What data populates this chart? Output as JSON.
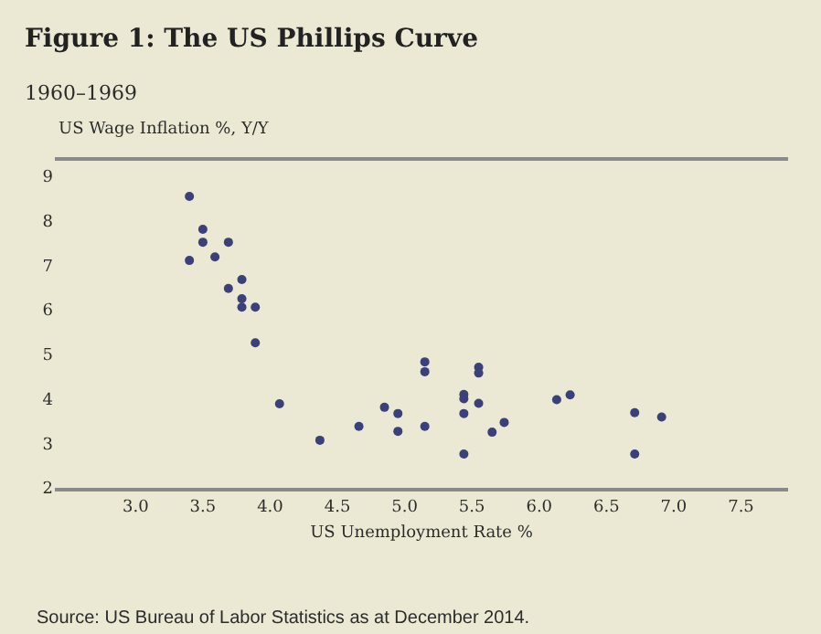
{
  "chart_data": {
    "type": "scatter",
    "title": "Figure 1: The US Phillips Curve",
    "subtitle": "1960–1969",
    "xlabel": "US Unemployment Rate %",
    "ylabel": "US Wage Inflation %, Y/Y",
    "annotations": [
      "Source: US Bureau of Labor Statistics as at December 2014."
    ],
    "series": [
      {
        "color": "#3b3f7a",
        "x": [
          3.4,
          3.4,
          3.5,
          3.5,
          3.59,
          3.69,
          3.69,
          3.79,
          3.79,
          3.79,
          3.89,
          3.89,
          4.07,
          4.37,
          4.66,
          4.85,
          4.95,
          4.95,
          5.15,
          5.15,
          5.15,
          5.44,
          5.44,
          5.44,
          5.44,
          5.55,
          5.55,
          5.55,
          5.65,
          5.74,
          6.13,
          6.23,
          6.71,
          6.71,
          6.91
        ],
        "values": [
          8.55,
          7.11,
          7.81,
          7.52,
          7.19,
          7.52,
          6.48,
          6.68,
          6.25,
          6.06,
          6.06,
          5.26,
          3.89,
          3.07,
          3.38,
          3.81,
          3.67,
          3.27,
          3.38,
          4.83,
          4.61,
          4.1,
          4.0,
          3.67,
          2.76,
          4.71,
          4.58,
          3.9,
          3.25,
          3.47,
          3.98,
          4.09,
          3.69,
          2.76,
          3.59
        ]
      }
    ],
    "xlim": [
      2.4,
      7.85
    ],
    "ylim": [
      2,
      9.35
    ],
    "xticks": [
      {
        "value": 3,
        "label": "3.0"
      },
      3.5,
      {
        "value": 4,
        "label": "4.0"
      },
      4.5,
      {
        "value": 5,
        "label": "5.0"
      },
      5.5,
      {
        "value": 6,
        "label": "6.0"
      },
      6.5,
      {
        "value": 7,
        "label": "7.0"
      },
      7.5
    ],
    "yticks": [
      2,
      3,
      4,
      5,
      6,
      7,
      8,
      9
    ],
    "grid": false,
    "marker": "circle"
  }
}
